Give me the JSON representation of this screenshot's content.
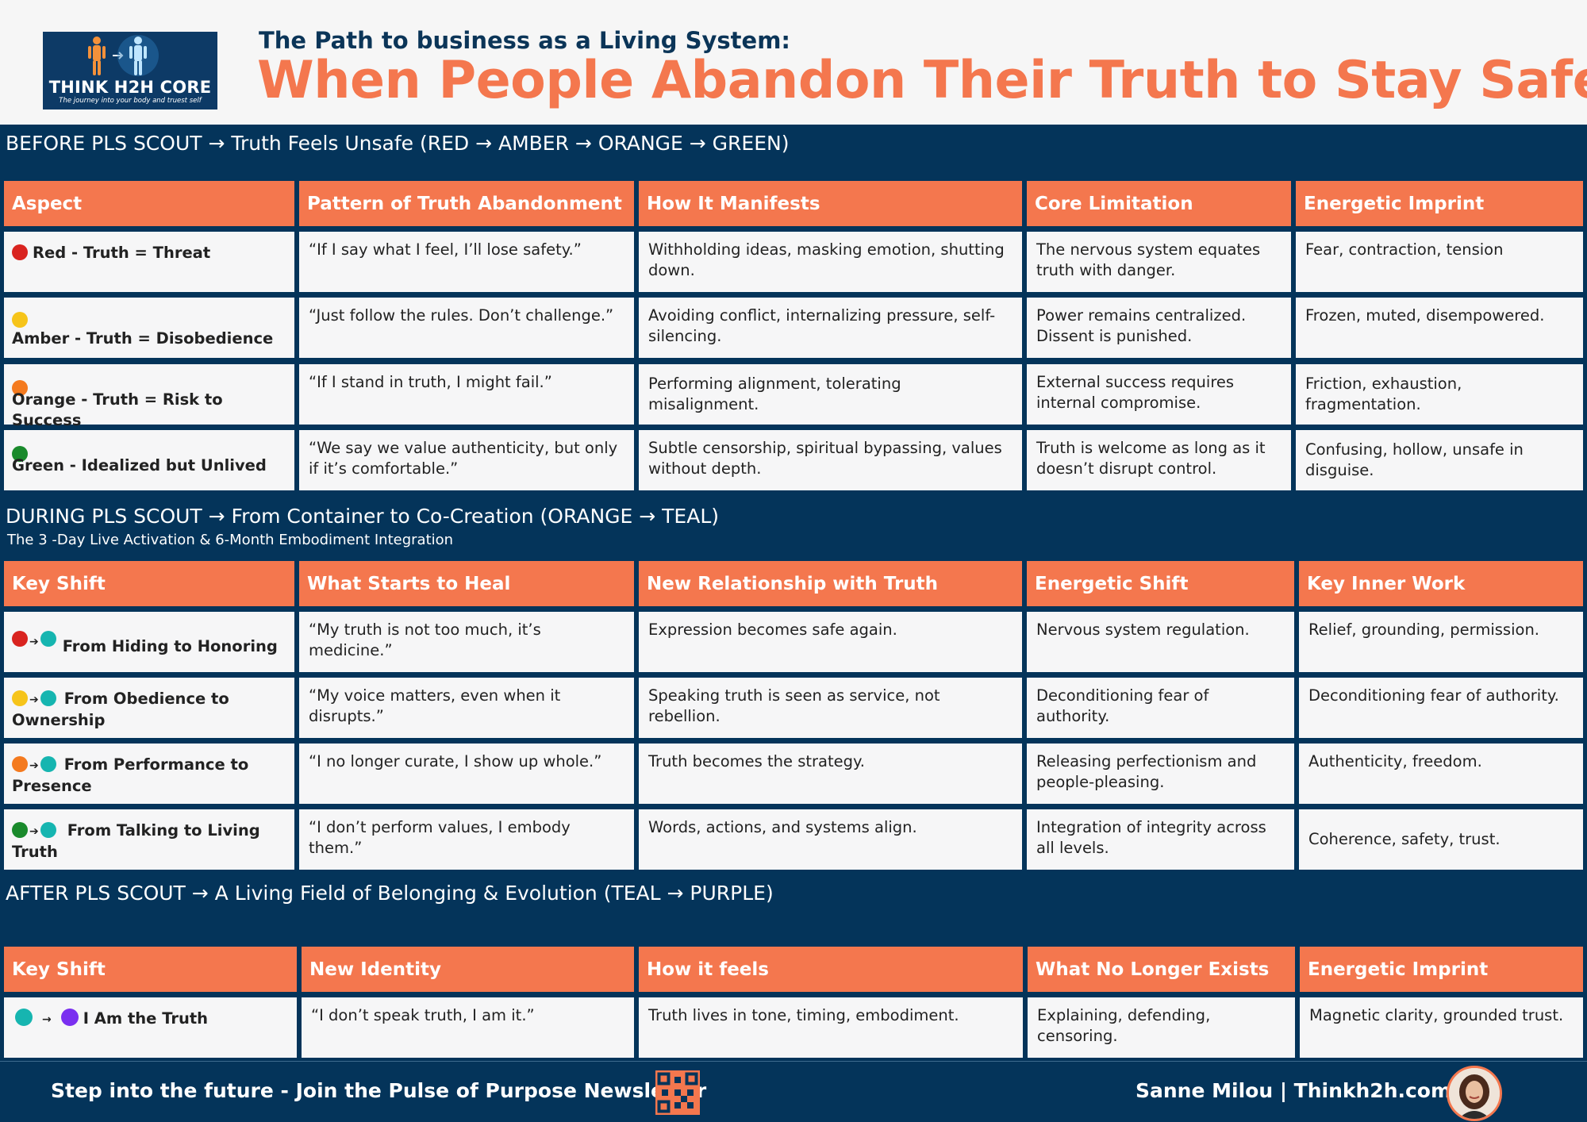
{
  "header": {
    "logo_name": "THINK H2H CORE",
    "logo_tagline": "The journey into your body and truest self",
    "subtitle": "The Path to business as a Living System:",
    "title": "When People Abandon Their Truth to Stay Safe"
  },
  "colors": {
    "red": "#d9231f",
    "amber": "#f6c41a",
    "orange": "#f47a1f",
    "green": "#1a8a2c",
    "teal": "#16b5b0",
    "purple": "#7a2ff0",
    "accent": "#f4774e",
    "navy": "#04345a"
  },
  "before": {
    "title": "BEFORE PLS SCOUT →  Truth Feels Unsafe (RED → AMBER → ORANGE → GREEN)",
    "headers": [
      "Aspect",
      "Pattern of Truth Abandonment",
      "How It Manifests",
      "Core Limitation",
      "Energetic Imprint"
    ],
    "rows": [
      {
        "label": "Red - Truth = Threat",
        "pattern": "“If I say what I feel, I’ll lose safety.”",
        "manifests": "Withholding ideas, masking emotion, shutting down.",
        "limitation": "The nervous system equates truth with danger.",
        "imprint": "Fear, contraction, tension"
      },
      {
        "label": "Amber - Truth = Disobedience",
        "pattern": "“Just follow the rules. Don’t challenge.”",
        "manifests": "Avoiding conflict, internalizing pressure, self-silencing.",
        "limitation": "Power remains centralized. Dissent is punished.",
        "imprint": "Frozen, muted, disempowered."
      },
      {
        "label": "Orange - Truth = Risk to Success",
        "pattern": "“If I stand in truth, I might fail.”",
        "manifests": "Performing alignment, tolerating misalignment.",
        "limitation": "External success requires internal compromise.",
        "imprint": "Friction, exhaustion, fragmentation."
      },
      {
        "label": "Green - Idealized but Unlived",
        "pattern": "“We say we value authenticity, but only if it’s comfortable.”",
        "manifests": "Subtle censorship, spiritual bypassing, values without depth.",
        "limitation": "Truth is welcome as long as it doesn’t disrupt control.",
        "imprint": "Confusing, hollow, unsafe in disguise."
      }
    ]
  },
  "during": {
    "title": "DURING PLS SCOUT → From Container to Co-Creation (ORANGE → TEAL)",
    "subtitle": "The 3 -Day Live Activation & 6-Month Embodiment Integration",
    "headers": [
      "Key Shift",
      "What Starts to Heal",
      "New Relationship with Truth",
      "Energetic Shift",
      "Key Inner Work"
    ],
    "rows": [
      {
        "label": "From Hiding to Honoring",
        "heal": "“My truth is not too much, it’s medicine.”",
        "relationship": "Expression becomes safe again.",
        "shift": "Nervous system regulation.",
        "work": "Relief, grounding, permission."
      },
      {
        "label": "From Obedience to Ownership",
        "heal": "“My voice matters, even when it disrupts.”",
        "relationship": "Speaking truth is seen as service, not rebellion.",
        "shift": "Deconditioning fear of authority.",
        "work": "Deconditioning fear of authority."
      },
      {
        "label": "From Performance to Presence",
        "heal": "“I no longer curate, I show up whole.”",
        "relationship": "Truth becomes the strategy.",
        "shift": "Releasing perfectionism and people-pleasing.",
        "work": "Authenticity, freedom."
      },
      {
        "label": "From Talking to Living Truth",
        "heal": "“I don’t perform values, I embody them.”",
        "relationship": "Words, actions, and systems align.",
        "shift": "Integration of integrity across all levels.",
        "work": "Coherence, safety, trust."
      }
    ]
  },
  "after": {
    "title": "AFTER PLS SCOUT → A Living Field of Belonging & Evolution  (TEAL → PURPLE)",
    "headers": [
      "Key Shift",
      "New Identity",
      "How it feels",
      "What No Longer Exists",
      "Energetic Imprint"
    ],
    "rows": [
      {
        "label": "I Am the Truth",
        "identity": "“I don’t speak truth, I am it.”",
        "feels": "Truth lives in tone, timing, embodiment.",
        "no_longer": "Explaining, defending, censoring.",
        "imprint": "Magnetic clarity, grounded trust."
      }
    ]
  },
  "footer": {
    "left": "Step into the future -  Join the Pulse of Purpose Newsletter",
    "right": "Sanne Milou | Thinkh2h.com"
  }
}
